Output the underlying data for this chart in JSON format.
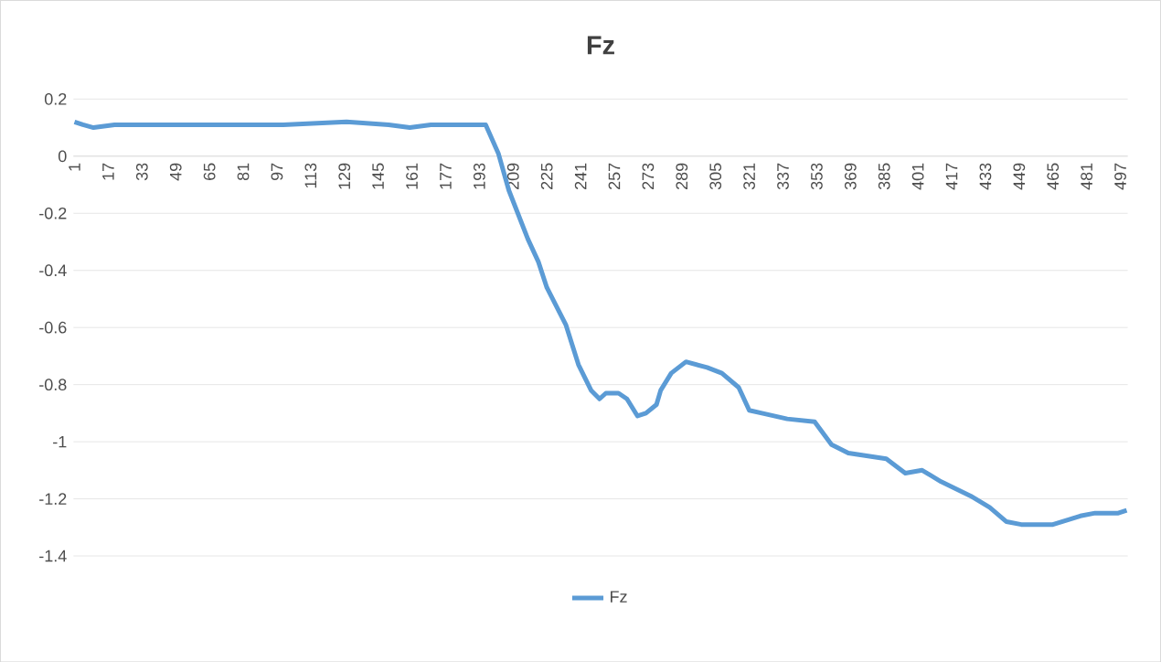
{
  "chart_data": {
    "type": "line",
    "title": "Fz",
    "x": [
      1,
      5,
      10,
      20,
      40,
      60,
      80,
      100,
      130,
      150,
      160,
      170,
      190,
      196,
      202,
      207,
      216,
      221,
      225,
      234,
      240,
      246,
      250,
      253,
      259,
      263,
      268,
      272,
      277,
      279,
      284,
      291,
      301,
      308,
      316,
      321,
      327,
      339,
      352,
      360,
      368,
      386,
      395,
      403,
      412,
      426,
      435,
      443,
      450,
      465,
      478,
      485,
      496,
      500
    ],
    "series": [
      {
        "name": "Fz",
        "color": "#5b9bd5",
        "values": [
          0.12,
          0.11,
          0.1,
          0.11,
          0.11,
          0.11,
          0.11,
          0.11,
          0.12,
          0.11,
          0.1,
          0.11,
          0.11,
          0.11,
          0.01,
          -0.12,
          -0.29,
          -0.37,
          -0.46,
          -0.59,
          -0.73,
          -0.82,
          -0.85,
          -0.83,
          -0.83,
          -0.85,
          -0.91,
          -0.9,
          -0.87,
          -0.82,
          -0.76,
          -0.72,
          -0.74,
          -0.76,
          -0.81,
          -0.89,
          -0.9,
          -0.92,
          -0.93,
          -1.01,
          -1.04,
          -1.06,
          -1.11,
          -1.1,
          -1.14,
          -1.19,
          -1.23,
          -1.28,
          -1.29,
          -1.29,
          -1.26,
          -1.25,
          -1.25,
          -1.24
        ]
      }
    ],
    "xlim": [
      0.5,
      500.5
    ],
    "xticks": [
      1,
      17,
      33,
      49,
      65,
      81,
      97,
      113,
      129,
      145,
      161,
      177,
      193,
      209,
      225,
      241,
      257,
      273,
      289,
      305,
      321,
      337,
      353,
      369,
      385,
      401,
      417,
      433,
      449,
      465,
      481,
      497
    ],
    "ylim": [
      -1.4,
      0.2
    ],
    "yticks": [
      0.2,
      0,
      -0.2,
      -0.4,
      -0.6,
      -0.8,
      -1,
      -1.2,
      -1.4
    ],
    "grid": "y",
    "legend": "bottom",
    "marker": "none",
    "line_style": "solid"
  }
}
